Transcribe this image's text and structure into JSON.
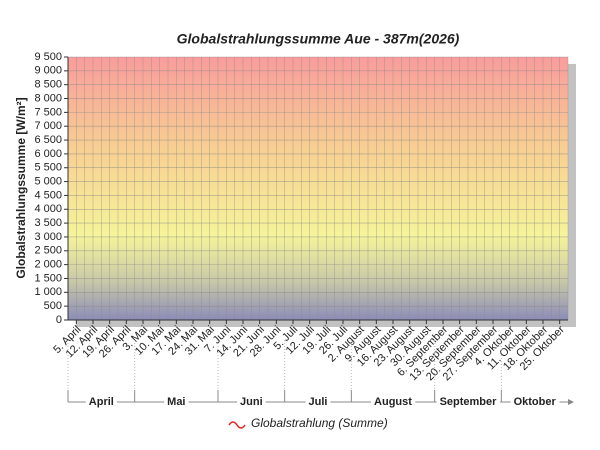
{
  "chart_data": {
    "type": "line",
    "title": "Globalstrahlungssumme Aue - 387m(2026)",
    "y_label": "Globalstrahlungssumme [W/m²]",
    "categories": [
      "5. April",
      "12. April",
      "19. April",
      "26. April",
      "3. Mai",
      "10. Mai",
      "17. Mai",
      "24. Mai",
      "31. Mai",
      "7. Juni",
      "14. Juni",
      "21. Juni",
      "28. Juni",
      "5. Juli",
      "12. Juli",
      "19. Juli",
      "26. Juli",
      "2. August",
      "9. August",
      "16. August",
      "23. August",
      "30. August",
      "6. September",
      "13. September",
      "20. September",
      "27. September",
      "4. Oktober",
      "11. Oktober",
      "18. Oktober",
      "25. Oktober"
    ],
    "months": [
      "April",
      "Mai",
      "Juni",
      "Juli",
      "August",
      "September",
      "Oktober"
    ],
    "series": [
      {
        "name": "Globalstrahlung (Summe)",
        "color": "#e0201a",
        "values": [
          null,
          null,
          null,
          null,
          null,
          null,
          null,
          null,
          null,
          null,
          null,
          null,
          null,
          null,
          null,
          null,
          null,
          null,
          null,
          null,
          null,
          null,
          null,
          null,
          null,
          null,
          null,
          null,
          null,
          null
        ]
      }
    ],
    "ylim": [
      0,
      9500
    ],
    "yticks": [
      0,
      500,
      {
        "value": 1000,
        "label": "1 000"
      },
      {
        "value": 1500,
        "label": "1 500"
      },
      {
        "value": 2000,
        "label": "2 000"
      },
      {
        "value": 2500,
        "label": "2 500"
      },
      {
        "value": 3000,
        "label": "3 000"
      },
      {
        "value": 3500,
        "label": "3 500"
      },
      {
        "value": 4000,
        "label": "4 000"
      },
      {
        "value": 4500,
        "label": "4 500"
      },
      {
        "value": 5000,
        "label": "5 000"
      },
      {
        "value": 5500,
        "label": "5 500"
      },
      {
        "value": 6000,
        "label": "6 000"
      },
      {
        "value": 6500,
        "label": "6 500"
      },
      {
        "value": 7000,
        "label": "7 000"
      },
      {
        "value": 7500,
        "label": "7 500"
      },
      {
        "value": 8000,
        "label": "8 000"
      },
      {
        "value": 8500,
        "label": "8 500"
      },
      {
        "value": 9000,
        "label": "9 000"
      },
      {
        "value": 9500,
        "label": "9 500"
      }
    ],
    "grid": true
  }
}
